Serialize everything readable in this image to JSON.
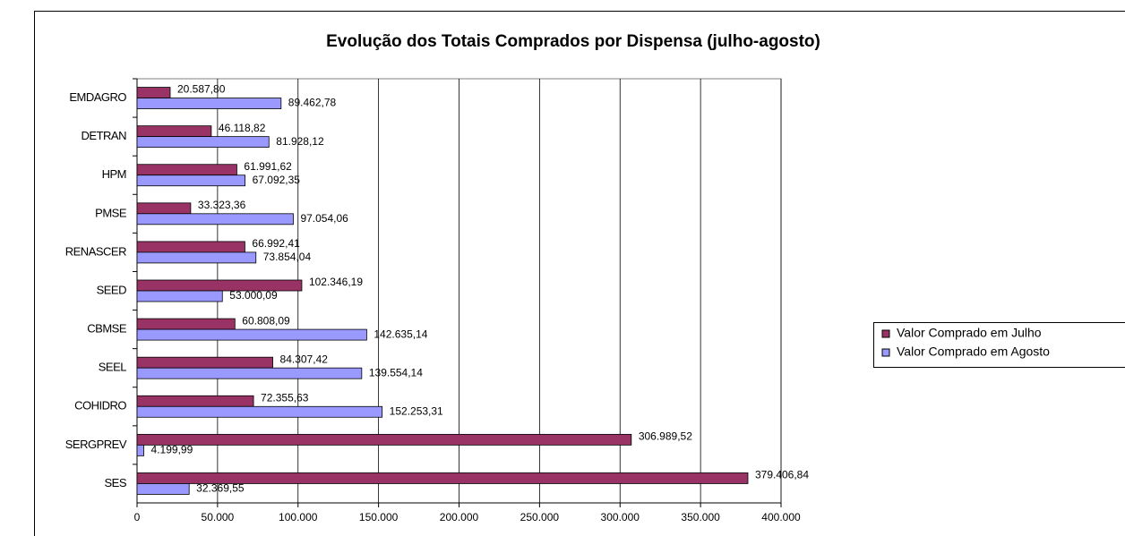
{
  "chart_data": {
    "type": "hbar",
    "title": "Evolução dos Totais Comprados por Dispensa (julho-agosto)",
    "categories": [
      "EMDAGRO",
      "DETRAN",
      "HPM",
      "PMSE",
      "RENASCER",
      "SEED",
      "CBMSE",
      "SEEL",
      "COHIDRO",
      "SERGPREV",
      "SES"
    ],
    "series": [
      {
        "name": "Valor Comprado em Julho",
        "color": "#993366",
        "values": [
          20587.8,
          46118.82,
          61991.62,
          33323.36,
          66992.41,
          102346.19,
          60808.09,
          84307.42,
          72355.63,
          306989.52,
          379406.84
        ],
        "value_labels": [
          "20.587,80",
          "46.118,82",
          "61.991,62",
          "33.323,36",
          "66.992,41",
          "102.346,19",
          "60.808,09",
          "84.307,42",
          "72.355,63",
          "306.989,52",
          "379.406,84"
        ]
      },
      {
        "name": "Valor Comprado em Agosto",
        "color": "#9999ff",
        "values": [
          89462.78,
          81928.12,
          67092.35,
          97054.06,
          73854.04,
          53000.09,
          142635.14,
          139554.14,
          152253.31,
          4199.99,
          32369.55
        ],
        "value_labels": [
          "89.462,78",
          "81.928,12",
          "67.092,35",
          "97.054,06",
          "73.854,04",
          "53.000,09",
          "142.635,14",
          "139.554,14",
          "152.253,31",
          "4.199,99",
          "32.369,55"
        ]
      }
    ],
    "xlim": [
      0,
      400000
    ],
    "xticks": [
      0,
      {
        "value": 50000,
        "label": "50.000"
      },
      {
        "value": 100000,
        "label": "100.000"
      },
      {
        "value": 150000,
        "label": "150.000"
      },
      {
        "value": 200000,
        "label": "200.000"
      },
      {
        "value": 250000,
        "label": "250.000"
      },
      {
        "value": 300000,
        "label": "300.000"
      },
      {
        "value": 350000,
        "label": "350.000"
      },
      {
        "value": 400000,
        "label": "400.000"
      }
    ],
    "grid": true,
    "legend": "right"
  }
}
